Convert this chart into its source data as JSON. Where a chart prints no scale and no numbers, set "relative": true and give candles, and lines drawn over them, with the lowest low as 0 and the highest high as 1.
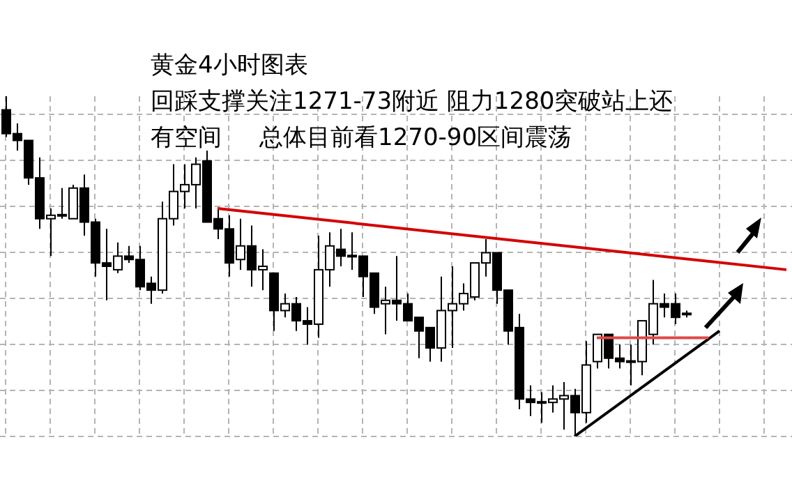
{
  "chart_data": {
    "type": "candlestick",
    "title": "黄金4小时图表",
    "annotations": [
      "回踩支撑关注1271-73附近 阻力1280突破站上还",
      "有空间     总体目前看1270-90区间震荡"
    ],
    "relative": true,
    "grid": true,
    "tick_labels": false,
    "categories": [
      null,
      null,
      null,
      null,
      null,
      null,
      null,
      null,
      null,
      null,
      null,
      null,
      null,
      null,
      null,
      null,
      null,
      null,
      null,
      null,
      null,
      null,
      null,
      null,
      null,
      null,
      null,
      null,
      null,
      null,
      null,
      null,
      null,
      null,
      null,
      null,
      null,
      null,
      null,
      null,
      null,
      null,
      null,
      null,
      null,
      null,
      null,
      null,
      null,
      null,
      null,
      null,
      null,
      null,
      null,
      null,
      null,
      null,
      null,
      null,
      null,
      null,
      null,
      null,
      null,
      null,
      null,
      null,
      null,
      null,
      null
    ],
    "ohlc": [
      [
        0.96,
        1,
        0.88,
        0.89
      ],
      [
        0.89,
        0.92,
        0.84,
        0.87
      ],
      [
        0.87,
        0.87,
        0.74,
        0.76
      ],
      [
        0.76,
        0.82,
        0.61,
        0.64
      ],
      [
        0.64,
        0.67,
        0.53,
        0.65
      ],
      [
        0.65,
        0.73,
        0.64,
        0.65
      ],
      [
        0.64,
        0.74,
        0.64,
        0.73
      ],
      [
        0.73,
        0.77,
        0.59,
        0.63
      ],
      [
        0.63,
        0.64,
        0.47,
        0.51
      ],
      [
        0.51,
        0.61,
        0.4,
        0.5
      ],
      [
        0.49,
        0.57,
        0.48,
        0.53
      ],
      [
        0.53,
        0.56,
        0.51,
        0.52
      ],
      [
        0.52,
        0.56,
        0.43,
        0.44
      ],
      [
        0.45,
        0.47,
        0.39,
        0.43
      ],
      [
        0.43,
        0.69,
        0.42,
        0.64
      ],
      [
        0.64,
        0.8,
        0.62,
        0.72
      ],
      [
        0.72,
        0.8,
        0.67,
        0.74
      ],
      [
        0.74,
        0.82,
        0.67,
        0.8
      ],
      [
        0.81,
        0.84,
        0.63,
        0.63
      ],
      [
        0.64,
        0.67,
        0.58,
        0.61
      ],
      [
        0.61,
        0.65,
        0.47,
        0.51
      ],
      [
        0.52,
        0.64,
        0.49,
        0.56
      ],
      [
        0.56,
        0.62,
        0.44,
        0.49
      ],
      [
        0.49,
        0.55,
        0.43,
        0.5
      ],
      [
        0.48,
        0.48,
        0.31,
        0.37
      ],
      [
        0.37,
        0.42,
        0.35,
        0.39
      ],
      [
        0.39,
        0.41,
        0.31,
        0.34
      ],
      [
        0.34,
        0.38,
        0.27,
        0.33
      ],
      [
        0.33,
        0.59,
        0.29,
        0.49
      ],
      [
        0.49,
        0.6,
        0.44,
        0.56
      ],
      [
        0.55,
        0.61,
        0.5,
        0.53
      ],
      [
        0.53,
        0.6,
        0.49,
        0.53
      ],
      [
        0.53,
        0.53,
        0.41,
        0.47
      ],
      [
        0.48,
        0.48,
        0.36,
        0.38
      ],
      [
        0.39,
        0.44,
        0.3,
        0.4
      ],
      [
        0.4,
        0.53,
        0.34,
        0.39
      ],
      [
        0.39,
        0.42,
        0.34,
        0.34
      ],
      [
        0.35,
        0.35,
        0.23,
        0.31
      ],
      [
        0.32,
        0.32,
        0.22,
        0.26
      ],
      [
        0.26,
        0.47,
        0.22,
        0.37
      ],
      [
        0.37,
        0.5,
        0.26,
        0.39
      ],
      [
        0.39,
        0.45,
        0.37,
        0.42
      ],
      [
        0.41,
        0.51,
        0.4,
        0.51
      ],
      [
        0.51,
        0.58,
        0.47,
        0.54
      ],
      [
        0.54,
        0.54,
        0.39,
        0.43
      ],
      [
        0.43,
        0.43,
        0.27,
        0.31
      ],
      [
        0.32,
        0.36,
        0.08,
        0.11
      ],
      [
        0.11,
        0.15,
        0.06,
        0.1
      ],
      [
        0.1,
        0.13,
        0.04,
        0.1
      ],
      [
        0.1,
        0.15,
        0.07,
        0.11
      ],
      [
        0.11,
        0.16,
        0.02,
        0.12
      ],
      [
        0.12,
        0.14,
        0,
        0.07
      ],
      [
        0.07,
        0.28,
        0.04,
        0.21
      ],
      [
        0.22,
        0.3,
        0.2,
        0.3
      ],
      [
        0.3,
        0.3,
        0.2,
        0.23
      ],
      [
        0.23,
        0.27,
        0.2,
        0.22
      ],
      [
        0.22,
        0.27,
        0.15,
        0.22
      ],
      [
        0.22,
        0.34,
        0.18,
        0.34
      ],
      [
        0.3,
        0.46,
        0.27,
        0.39
      ],
      [
        0.39,
        0.42,
        0.35,
        0.38
      ],
      [
        0.39,
        0.42,
        0.33,
        0.35
      ],
      [
        0.36,
        0.37,
        0.35,
        0.36
      ],
      null,
      null,
      null,
      null,
      null,
      null,
      null,
      null,
      null
    ],
    "color": "#000000",
    "series": [
      {
        "type": "line",
        "color": "#d40000",
        "values": [
          null,
          null,
          null,
          null,
          null,
          null,
          null,
          null,
          null,
          null,
          null,
          null,
          null,
          null,
          null,
          null,
          null,
          null,
          null,
          0.67,
          null,
          null,
          null,
          null,
          null,
          null,
          null,
          null,
          null,
          null,
          null,
          null,
          null,
          null,
          null,
          null,
          null,
          null,
          null,
          null,
          null,
          null,
          null,
          null,
          null,
          null,
          null,
          null,
          null,
          null,
          null,
          null,
          null,
          null,
          null,
          null,
          null,
          null,
          null,
          null,
          null,
          null,
          null,
          null,
          null,
          null,
          null,
          null,
          null,
          null,
          0.49
        ]
      },
      {
        "type": "line",
        "color": "#000000",
        "values": [
          null,
          null,
          null,
          null,
          null,
          null,
          null,
          null,
          null,
          null,
          null,
          null,
          null,
          null,
          null,
          null,
          null,
          null,
          null,
          null,
          null,
          null,
          null,
          null,
          null,
          null,
          null,
          null,
          null,
          null,
          null,
          null,
          null,
          null,
          null,
          null,
          null,
          null,
          null,
          null,
          null,
          null,
          null,
          null,
          null,
          null,
          null,
          null,
          null,
          null,
          null,
          0,
          null,
          null,
          null,
          null,
          null,
          null,
          null,
          null,
          null,
          null,
          null,
          null,
          0.31,
          null,
          null,
          null,
          null,
          null,
          null
        ]
      },
      {
        "type": "line",
        "color": "#e04848",
        "values": [
          null,
          null,
          null,
          null,
          null,
          null,
          null,
          null,
          null,
          null,
          null,
          null,
          null,
          null,
          null,
          null,
          null,
          null,
          null,
          null,
          null,
          null,
          null,
          null,
          null,
          null,
          null,
          null,
          null,
          null,
          null,
          null,
          null,
          null,
          null,
          null,
          null,
          null,
          null,
          null,
          null,
          null,
          null,
          null,
          null,
          null,
          null,
          null,
          null,
          null,
          null,
          null,
          null,
          0.29,
          null,
          null,
          null,
          null,
          null,
          null,
          null,
          null,
          null,
          0.29,
          null,
          null,
          null,
          null,
          null,
          null,
          null
        ]
      }
    ]
  }
}
